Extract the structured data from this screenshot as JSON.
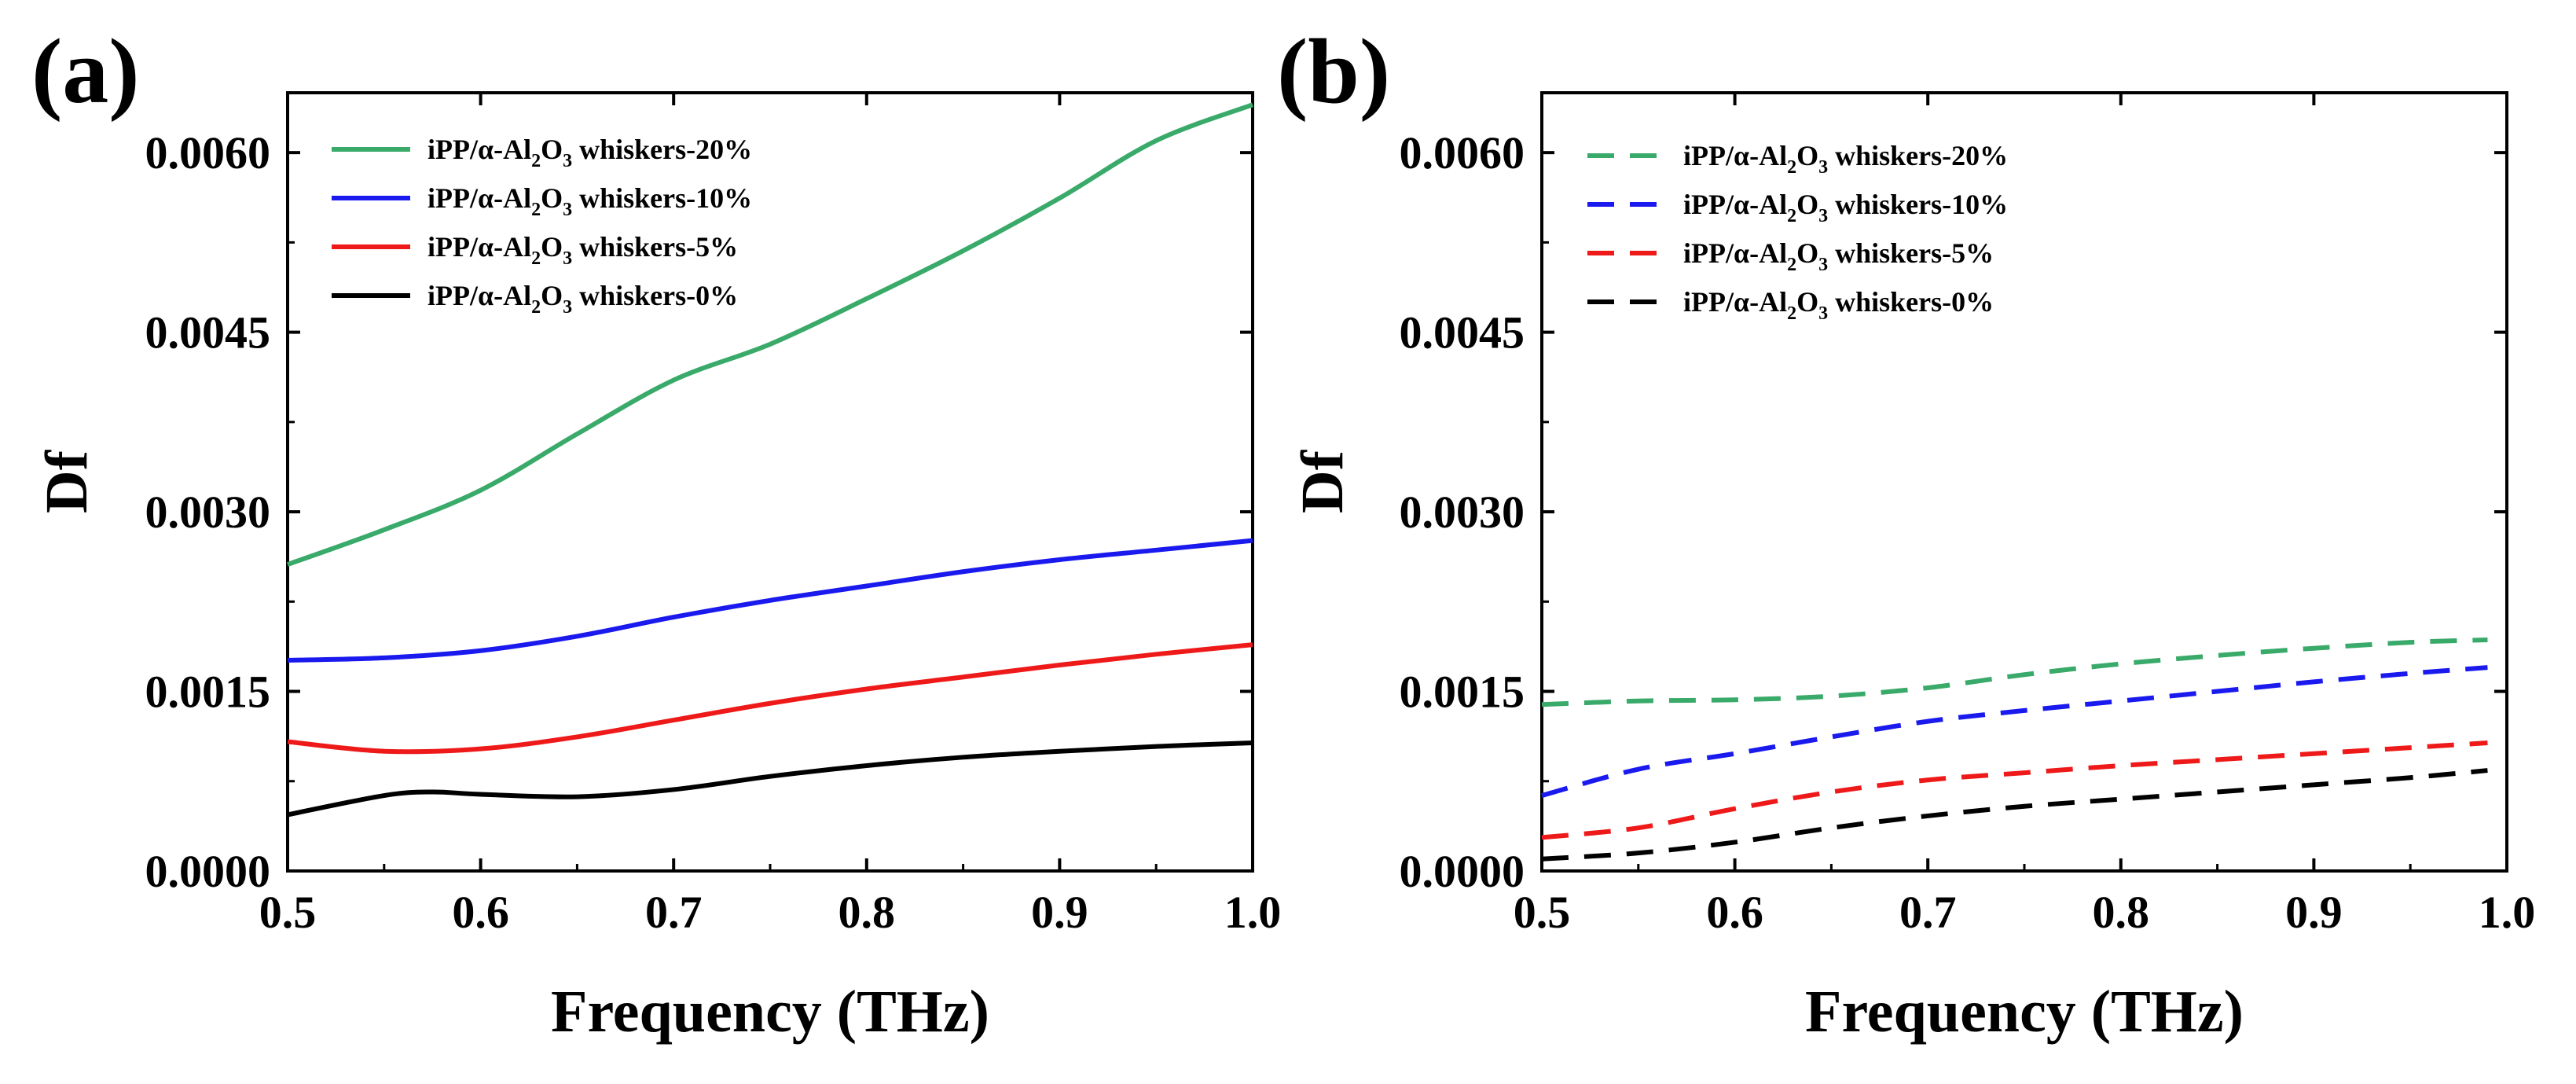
{
  "figure": {
    "panels": [
      {
        "label": "(a)",
        "type": "line",
        "line_style": "solid",
        "xlabel": "Frequency (THz)",
        "ylabel": "Df",
        "xlim": [
          0.5,
          1.0
        ],
        "ylim": [
          0.0,
          0.0065
        ],
        "xticks": [
          "0.5",
          "0.6",
          "0.7",
          "0.8",
          "0.9",
          "1.0"
        ],
        "yticks": [
          "0.0000",
          "0.0015",
          "0.0030",
          "0.0045",
          "0.0060"
        ],
        "legend_position": "top-left",
        "series": [
          {
            "name": "iPP/α-Al2O3 whiskers-20%",
            "label_parts": [
              "iPP/α-Al",
              "2",
              "O",
              "3",
              " whiskers-20%"
            ],
            "color": "#3aaa6a",
            "x": [
              0.5,
              0.55,
              0.6,
              0.65,
              0.7,
              0.75,
              0.8,
              0.85,
              0.9,
              0.95,
              1.0
            ],
            "y": [
              0.00256,
              0.00285,
              0.00318,
              0.00365,
              0.0041,
              0.0044,
              0.00478,
              0.00518,
              0.00562,
              0.0061,
              0.0064
            ]
          },
          {
            "name": "iPP/α-Al2O3 whiskers-10%",
            "label_parts": [
              "iPP/α-Al",
              "2",
              "O",
              "3",
              " whiskers-10%"
            ],
            "color": "#1a1aee",
            "x": [
              0.5,
              0.55,
              0.6,
              0.65,
              0.7,
              0.75,
              0.8,
              0.85,
              0.9,
              0.95,
              1.0
            ],
            "y": [
              0.00176,
              0.00178,
              0.00184,
              0.00196,
              0.00212,
              0.00226,
              0.00238,
              0.0025,
              0.0026,
              0.00268,
              0.00276
            ]
          },
          {
            "name": "iPP/α-Al2O3 whiskers-5%",
            "label_parts": [
              "iPP/α-Al",
              "2",
              "O",
              "3",
              " whiskers-5%"
            ],
            "color": "#ee1a1a",
            "x": [
              0.5,
              0.55,
              0.6,
              0.65,
              0.7,
              0.75,
              0.8,
              0.85,
              0.9,
              0.95,
              1.0
            ],
            "y": [
              0.00108,
              0.001,
              0.00102,
              0.00112,
              0.00126,
              0.0014,
              0.00152,
              0.00162,
              0.00172,
              0.00181,
              0.00189
            ]
          },
          {
            "name": "iPP/α-Al2O3 whiskers-0%",
            "label_parts": [
              "iPP/α-Al",
              "2",
              "O",
              "3",
              " whiskers-0%"
            ],
            "color": "#000000",
            "x": [
              0.5,
              0.55,
              0.575,
              0.6,
              0.65,
              0.7,
              0.75,
              0.8,
              0.85,
              0.9,
              0.95,
              1.0
            ],
            "y": [
              0.00047,
              0.00063,
              0.00066,
              0.00064,
              0.00062,
              0.00068,
              0.00079,
              0.00088,
              0.00095,
              0.001,
              0.00104,
              0.00107
            ]
          }
        ]
      },
      {
        "label": "(b)",
        "type": "line",
        "line_style": "dashed",
        "xlabel": "Frequency (THz)",
        "ylabel": "Df",
        "xlim": [
          0.5,
          1.0
        ],
        "ylim": [
          0.0,
          0.0065
        ],
        "xticks": [
          "0.5",
          "0.6",
          "0.7",
          "0.8",
          "0.9",
          "1.0"
        ],
        "yticks": [
          "0.0000",
          "0.0015",
          "0.0030",
          "0.0045",
          "0.0060"
        ],
        "legend_position": "top-left",
        "series": [
          {
            "name": "iPP/α-Al2O3 whiskers-20%",
            "label_parts": [
              "iPP/α-Al",
              "2",
              "O",
              "3",
              " whiskers-20%"
            ],
            "color": "#3aaa6a",
            "x": [
              0.5,
              0.55,
              0.6,
              0.65,
              0.7,
              0.75,
              0.8,
              0.85,
              0.9,
              0.95,
              0.99
            ],
            "y": [
              0.00139,
              0.00142,
              0.00143,
              0.00146,
              0.00153,
              0.00164,
              0.00173,
              0.0018,
              0.00186,
              0.00191,
              0.00193
            ]
          },
          {
            "name": "iPP/α-Al2O3 whiskers-10%",
            "label_parts": [
              "iPP/α-Al",
              "2",
              "O",
              "3",
              " whiskers-10%"
            ],
            "color": "#1a1aee",
            "x": [
              0.5,
              0.55,
              0.6,
              0.65,
              0.7,
              0.75,
              0.8,
              0.85,
              0.9,
              0.95,
              0.99
            ],
            "y": [
              0.00063,
              0.00085,
              0.00098,
              0.00112,
              0.00125,
              0.00134,
              0.00142,
              0.0015,
              0.00158,
              0.00165,
              0.0017
            ]
          },
          {
            "name": "iPP/α-Al2O3 whiskers-5%",
            "label_parts": [
              "iPP/α-Al",
              "2",
              "O",
              "3",
              " whiskers-5%"
            ],
            "color": "#ee1a1a",
            "x": [
              0.5,
              0.55,
              0.6,
              0.65,
              0.7,
              0.75,
              0.8,
              0.85,
              0.9,
              0.95,
              0.99
            ],
            "y": [
              0.00028,
              0.00036,
              0.00052,
              0.00066,
              0.00076,
              0.00082,
              0.00088,
              0.00093,
              0.00098,
              0.00103,
              0.00107
            ]
          },
          {
            "name": "iPP/α-Al2O3 whiskers-0%",
            "label_parts": [
              "iPP/α-Al",
              "2",
              "O",
              "3",
              " whiskers-0%"
            ],
            "color": "#000000",
            "x": [
              0.5,
              0.55,
              0.6,
              0.65,
              0.7,
              0.75,
              0.8,
              0.85,
              0.9,
              0.95,
              0.99
            ],
            "y": [
              0.0001,
              0.00015,
              0.00024,
              0.00036,
              0.00046,
              0.00054,
              0.0006,
              0.00066,
              0.00072,
              0.00078,
              0.00084
            ]
          }
        ]
      }
    ]
  }
}
